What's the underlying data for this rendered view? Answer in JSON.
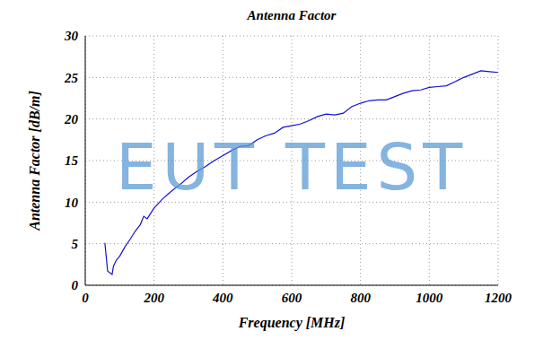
{
  "chart_data": {
    "type": "line",
    "title": "Antenna Factor",
    "x_label": "Frequency [MHz]",
    "y_label": "Antenna Factor [dB/m]",
    "annotations": [
      "EUT TEST"
    ],
    "x": [
      57,
      65,
      78,
      82,
      90,
      100,
      115,
      130,
      145,
      160,
      170,
      180,
      200,
      225,
      250,
      275,
      300,
      325,
      350,
      375,
      400,
      425,
      450,
      475,
      500,
      525,
      550,
      575,
      600,
      625,
      650,
      675,
      700,
      725,
      750,
      775,
      800,
      825,
      850,
      875,
      900,
      925,
      950,
      975,
      1000,
      1025,
      1050,
      1075,
      1100,
      1125,
      1150,
      1175,
      1200
    ],
    "values": [
      5.1,
      1.7,
      1.3,
      2.3,
      3.0,
      3.5,
      4.6,
      5.5,
      6.5,
      7.3,
      8.3,
      8.0,
      9.3,
      10.4,
      11.3,
      12.1,
      13.0,
      13.7,
      14.3,
      15.0,
      15.6,
      16.2,
      16.7,
      16.8,
      17.5,
      18.0,
      18.3,
      19.0,
      19.2,
      19.4,
      19.8,
      20.3,
      20.6,
      20.5,
      20.7,
      21.5,
      21.9,
      22.2,
      22.3,
      22.3,
      22.7,
      23.1,
      23.4,
      23.5,
      23.8,
      23.9,
      24.0,
      24.5,
      25.0,
      25.4,
      25.8,
      25.7,
      25.6
    ],
    "color": "#1010d8",
    "xlim": [
      0,
      1200
    ],
    "xticks": [
      0,
      200,
      400,
      600,
      800,
      1000,
      1200
    ],
    "ylim": [
      0,
      30
    ],
    "yticks": [
      0,
      5,
      10,
      15,
      20,
      25,
      30
    ],
    "grid": true
  }
}
